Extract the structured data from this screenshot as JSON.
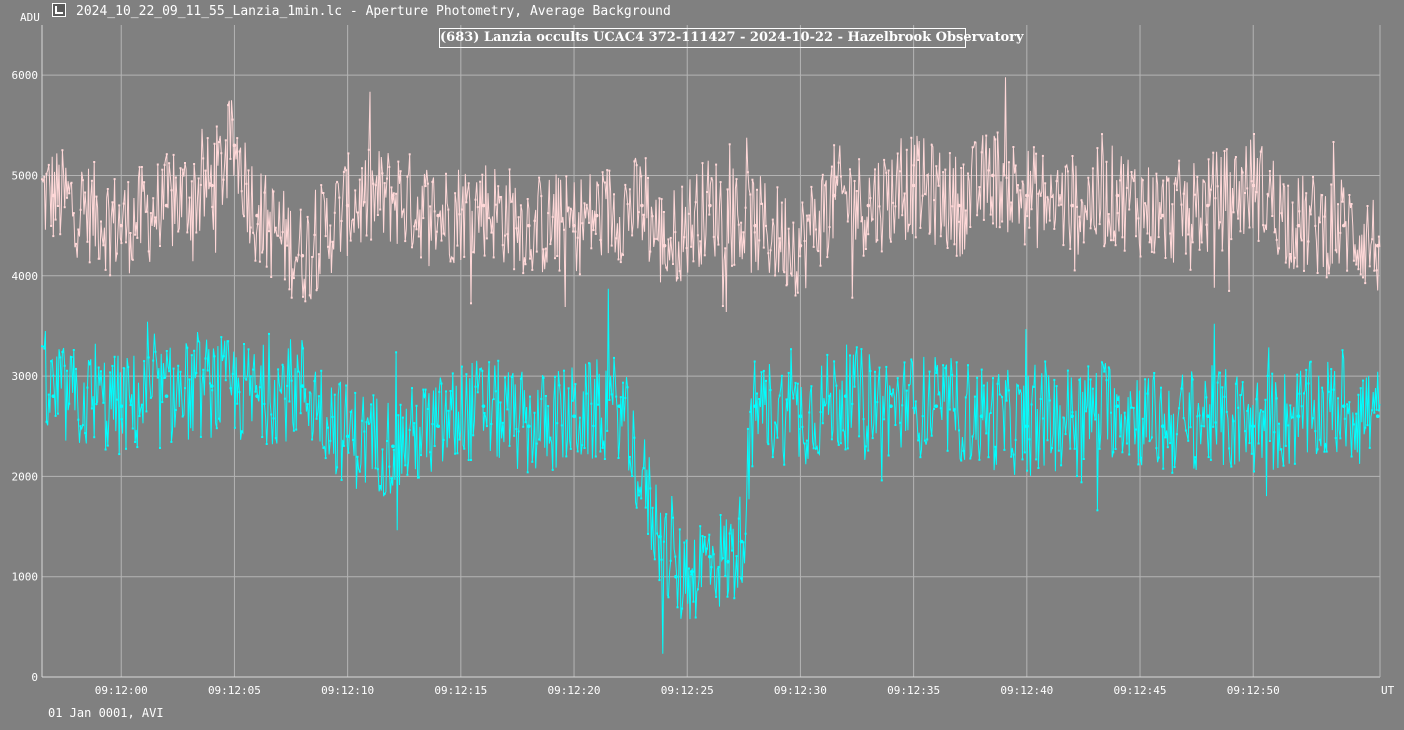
{
  "window": {
    "icon": "lightcurve-icon",
    "header_text": "2024_10_22_09_11_55_Lanzia_1min.lc - Aperture Photometry, Average Background"
  },
  "footer": {
    "date_text": "01 Jan 0001, AVI"
  },
  "chart_data": {
    "type": "line",
    "title": "(683) Lanzia occults UCAC4 372-111427 - 2024-10-22 - Hazelbrook Observatory",
    "ylabel": "ADU",
    "xlabel": "UT",
    "ylim": [
      0,
      6500
    ],
    "xlim": [
      "09:11:56.5",
      "09:12:55.6"
    ],
    "yticks": [
      0,
      1000,
      2000,
      3000,
      4000,
      5000,
      6000
    ],
    "ytick_labels": [
      "0",
      "1000",
      "2000",
      "3000",
      "4000",
      "5000",
      "6000"
    ],
    "xtick_labels": [
      "09:12:00",
      "09:12:05",
      "09:12:10",
      "09:12:15",
      "09:12:20",
      "09:12:25",
      "09:12:30",
      "09:12:35",
      "09:12:40",
      "09:12:45",
      "09:12:50"
    ],
    "grid": true,
    "legend": "none",
    "series_colors": [
      "#ffd8d8",
      "#00ffff"
    ],
    "series": [
      {
        "color": "#ffd8d8",
        "x": [
          "09:11:57",
          "09:12:00",
          "09:12:02",
          "09:12:04",
          "09:12:05",
          "09:12:06",
          "09:12:08",
          "09:12:10",
          "09:12:12",
          "09:12:14",
          "09:12:16",
          "09:12:18",
          "09:12:20",
          "09:12:21",
          "09:12:23",
          "09:12:24",
          "09:12:26",
          "09:12:28",
          "09:12:30",
          "09:12:31.5",
          "09:12:33",
          "09:12:35",
          "09:12:37",
          "09:12:38.5",
          "09:12:40",
          "09:12:42",
          "09:12:44",
          "09:12:46",
          "09:12:48",
          "09:12:50",
          "09:12:52",
          "09:12:54",
          "09:12:55.5"
        ],
        "values": [
          4800,
          4500,
          4700,
          4900,
          5300,
          4600,
          4200,
          4700,
          4800,
          4600,
          4700,
          4500,
          4500,
          4600,
          4700,
          4300,
          4700,
          4500,
          4300,
          4800,
          4700,
          4900,
          4700,
          5000,
          4800,
          4700,
          4800,
          4600,
          4700,
          4900,
          4500,
          4500,
          4300
        ]
      },
      {
        "color": "#00ffff",
        "x": [
          "09:11:57",
          "09:12:00",
          "09:12:02",
          "09:12:04",
          "09:12:06",
          "09:12:08",
          "09:12:10",
          "09:12:12",
          "09:12:14",
          "09:12:16",
          "09:12:18",
          "09:12:20",
          "09:12:22",
          "09:12:23.8",
          "09:12:24.5",
          "09:12:25.2",
          "09:12:26",
          "09:12:26.8",
          "09:12:27.4",
          "09:12:28",
          "09:12:30",
          "09:12:32",
          "09:12:34",
          "09:12:36",
          "09:12:38",
          "09:12:40",
          "09:12:42",
          "09:12:44",
          "09:12:46",
          "09:12:48",
          "09:12:50",
          "09:12:52",
          "09:12:54",
          "09:12:55.5"
        ],
        "values": [
          2800,
          2700,
          2800,
          2900,
          2800,
          2900,
          2400,
          2300,
          2500,
          2700,
          2500,
          2600,
          2700,
          1400,
          1000,
          1050,
          1200,
          1150,
          1350,
          2700,
          2600,
          2800,
          2700,
          2700,
          2600,
          2500,
          2600,
          2700,
          2500,
          2600,
          2500,
          2600,
          2700,
          2600
        ]
      }
    ]
  }
}
